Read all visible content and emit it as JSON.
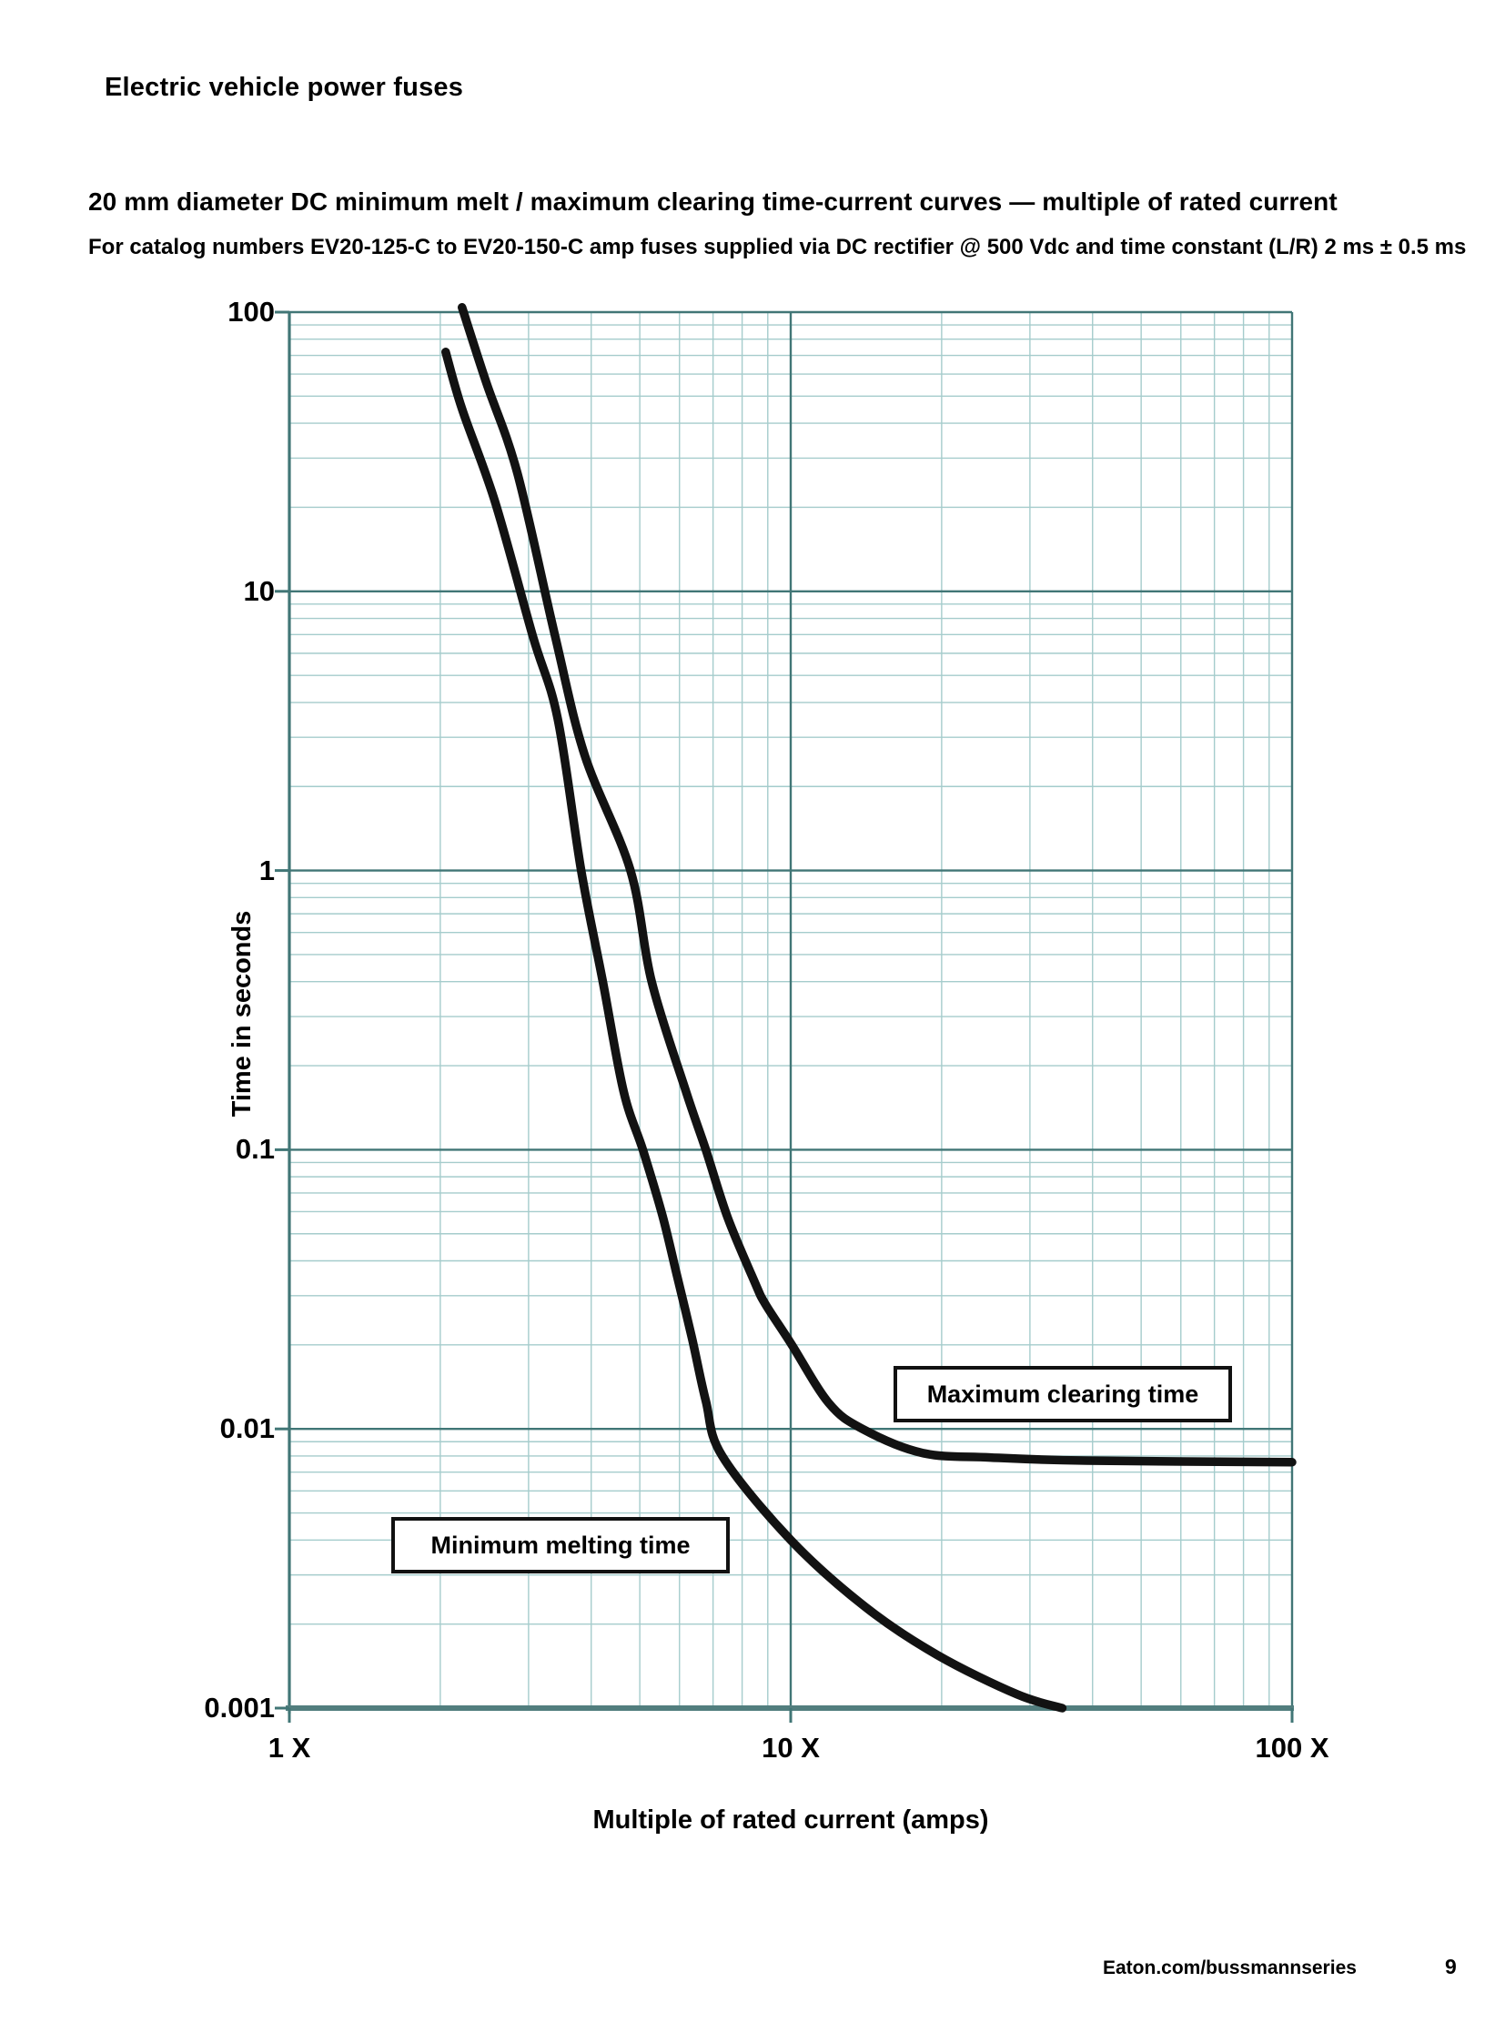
{
  "header": {
    "title": "Electric vehicle power fuses"
  },
  "chart": {
    "title": "20 mm diameter DC minimum melt / maximum clearing time-current curves — multiple of rated current",
    "subtitle": "For catalog numbers EV20-125-C to EV20-150-C amp fuses supplied via DC rectifier @ 500 Vdc and time constant (L/R) 2 ms ± 0.5 ms"
  },
  "chart_data": {
    "type": "line",
    "scale": "log-log",
    "title": "20 mm diameter DC minimum melt / maximum clearing time-current curves — multiple of rated current",
    "xlabel": "Multiple of rated current (amps)",
    "ylabel": "Time in seconds",
    "xlim": [
      1,
      100
    ],
    "ylim": [
      0.001,
      100
    ],
    "x_tick_labels": [
      "1 X",
      "10 X",
      "100 X"
    ],
    "y_tick_labels": [
      "100",
      "10",
      "1",
      "0.1",
      "0.01",
      "0.001"
    ],
    "grid": "log major and minor gridlines on",
    "legend_position": "labeled boxes inside plot",
    "colors": {
      "curve": "#121212",
      "grid_minor": "#a5cccc",
      "grid_major": "#417676",
      "axis": "#527e7e"
    },
    "series": [
      {
        "name": "Minimum melting time",
        "points": [
          [
            2.05,
            72
          ],
          [
            2.21,
            45
          ],
          [
            2.57,
            21
          ],
          [
            3.06,
            6.9
          ],
          [
            3.43,
            3.5
          ],
          [
            3.82,
            1.0
          ],
          [
            4.22,
            0.4
          ],
          [
            4.64,
            0.162
          ],
          [
            5.07,
            0.1
          ],
          [
            5.55,
            0.058
          ],
          [
            5.94,
            0.035
          ],
          [
            6.36,
            0.021
          ],
          [
            6.77,
            0.0126
          ],
          [
            7.3,
            0.008
          ],
          [
            10,
            0.004
          ],
          [
            14.1,
            0.0023
          ],
          [
            19.6,
            0.00155
          ],
          [
            28.3,
            0.00112
          ],
          [
            34.8,
            0.001
          ]
        ]
      },
      {
        "name": "Maximum clearing time",
        "points": [
          [
            2.21,
            104
          ],
          [
            2.47,
            56
          ],
          [
            2.85,
            26.5
          ],
          [
            3.39,
            6.9
          ],
          [
            3.88,
            2.6
          ],
          [
            4.79,
            1.0
          ],
          [
            5.28,
            0.4
          ],
          [
            6.18,
            0.162
          ],
          [
            6.77,
            0.1
          ],
          [
            7.49,
            0.057
          ],
          [
            8.48,
            0.0335
          ],
          [
            8.9,
            0.028
          ],
          [
            10,
            0.0203
          ],
          [
            11.9,
            0.0124
          ],
          [
            13.9,
            0.01
          ],
          [
            18.3,
            0.0082
          ],
          [
            25,
            0.0079
          ],
          [
            38.9,
            0.0077
          ],
          [
            100,
            0.0076
          ]
        ]
      }
    ]
  },
  "footer": {
    "link": "Eaton.com/bussmannseries",
    "page": "9"
  }
}
